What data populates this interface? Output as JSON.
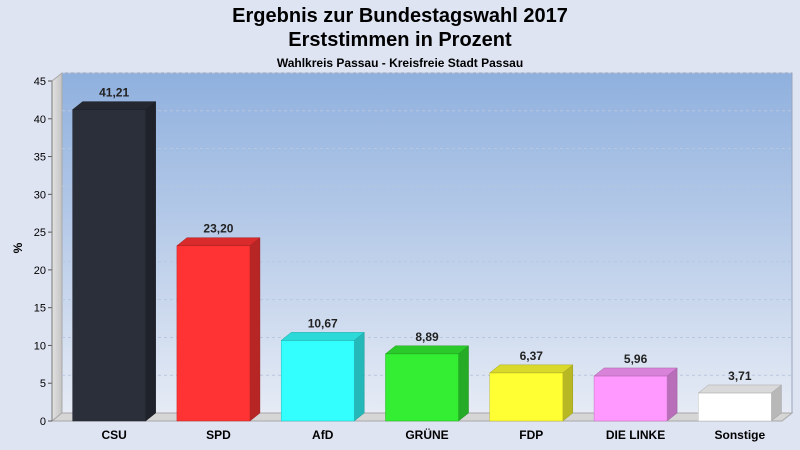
{
  "chart_data": {
    "type": "bar",
    "title": [
      "Ergebnis zur Bundestagswahl 2017",
      "Erststimmen in Prozent"
    ],
    "subtitle": "Wahlkreis Passau - Kreisfreie Stadt Passau",
    "xlabel": "",
    "ylabel": "%",
    "ylim": [
      0,
      45
    ],
    "yticks": [
      0,
      5,
      10,
      15,
      20,
      25,
      30,
      35,
      40,
      45
    ],
    "categories": [
      "CSU",
      "SPD",
      "AfD",
      "GRÜNE",
      "FDP",
      "DIE LINKE",
      "Sonstige"
    ],
    "values": [
      41.21,
      23.2,
      10.67,
      8.89,
      6.37,
      5.96,
      3.71
    ],
    "value_labels": [
      "41,21",
      "23,20",
      "10,67",
      "8,89",
      "6,37",
      "5,96",
      "3,71"
    ],
    "colors": [
      "#2b2f3a",
      "#ff3333",
      "#33ffff",
      "#33ee33",
      "#ffff33",
      "#ff99ff",
      "#ffffff"
    ],
    "grid": true,
    "legend": "none"
  }
}
